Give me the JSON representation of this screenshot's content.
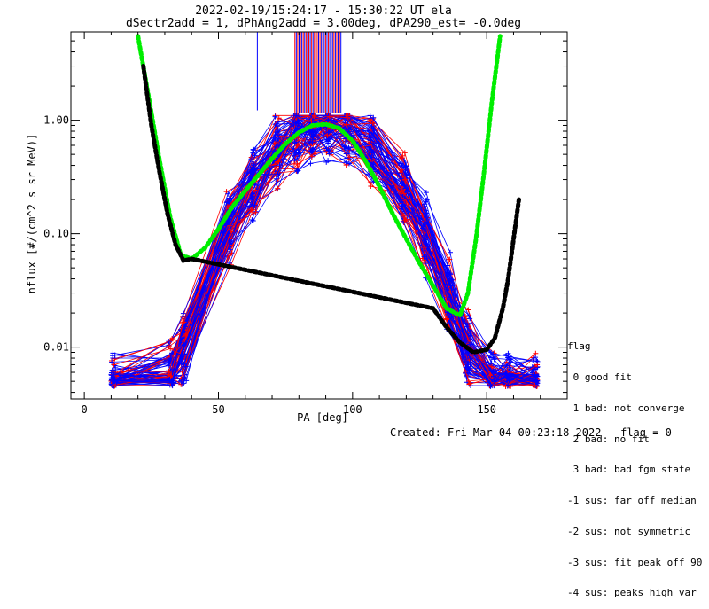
{
  "chart_data": {
    "type": "line",
    "title": "2022-02-19/15:24:17 - 15:30:22 UT ela",
    "subtitle": "dSectr2add = 1, dPhAng2add = 3.00deg, dPA290_est=  -0.0deg",
    "xlabel": "PA [deg]",
    "ylabel": "nflux [#/(cm^2 s sr MeV)]",
    "xlim": [
      -5,
      180
    ],
    "ylim": [
      0.0035,
      6
    ],
    "y_scale": "log",
    "x_ticks": [
      0,
      50,
      100,
      150
    ],
    "x_tick_labels": [
      "0",
      "50",
      "100",
      "150"
    ],
    "y_ticks": [
      0.01,
      0.1,
      1.0
    ],
    "y_tick_labels": [
      "0.01",
      "0.10",
      "1.00"
    ],
    "series": [
      {
        "name": "fit (green)",
        "color": "#00ee00",
        "x": [
          20,
          24,
          28,
          32,
          36,
          40,
          45,
          50,
          55,
          60,
          65,
          70,
          75,
          80,
          85,
          90,
          95,
          100,
          105,
          110,
          115,
          120,
          125,
          130,
          135,
          140,
          143,
          146,
          149,
          152,
          155
        ],
        "y": [
          5.5,
          1.6,
          0.45,
          0.14,
          0.065,
          0.06,
          0.075,
          0.11,
          0.17,
          0.24,
          0.33,
          0.46,
          0.62,
          0.78,
          0.9,
          0.92,
          0.85,
          0.66,
          0.43,
          0.26,
          0.15,
          0.09,
          0.055,
          0.035,
          0.022,
          0.019,
          0.03,
          0.09,
          0.35,
          1.5,
          5.5
        ]
      },
      {
        "name": "fit (black)",
        "color": "#000000",
        "x": [
          22,
          25,
          28,
          31,
          34,
          37,
          40,
          130,
          135,
          140,
          145,
          150,
          153,
          156,
          158,
          160,
          162
        ],
        "y": [
          3.0,
          0.9,
          0.35,
          0.15,
          0.08,
          0.058,
          0.06,
          0.022,
          0.015,
          0.011,
          0.009,
          0.0095,
          0.012,
          0.022,
          0.04,
          0.09,
          0.2
        ]
      }
    ],
    "legend": {
      "placement": "lower-right, outside plot",
      "title": "flag",
      "entries": [
        " 0 good fit",
        " 1 bad: not converge",
        " 2 bad: no fit",
        " 3 bad: bad fgm state",
        "-1 sus: far off median",
        "-2 sus: not symmetric",
        "-3 sus: fit peak off 90",
        "-4 sus: peaks high var"
      ]
    }
  },
  "footer": {
    "created": "Created: Fri Mar 04 00:23:18 2022",
    "flag": "flag = 0"
  }
}
